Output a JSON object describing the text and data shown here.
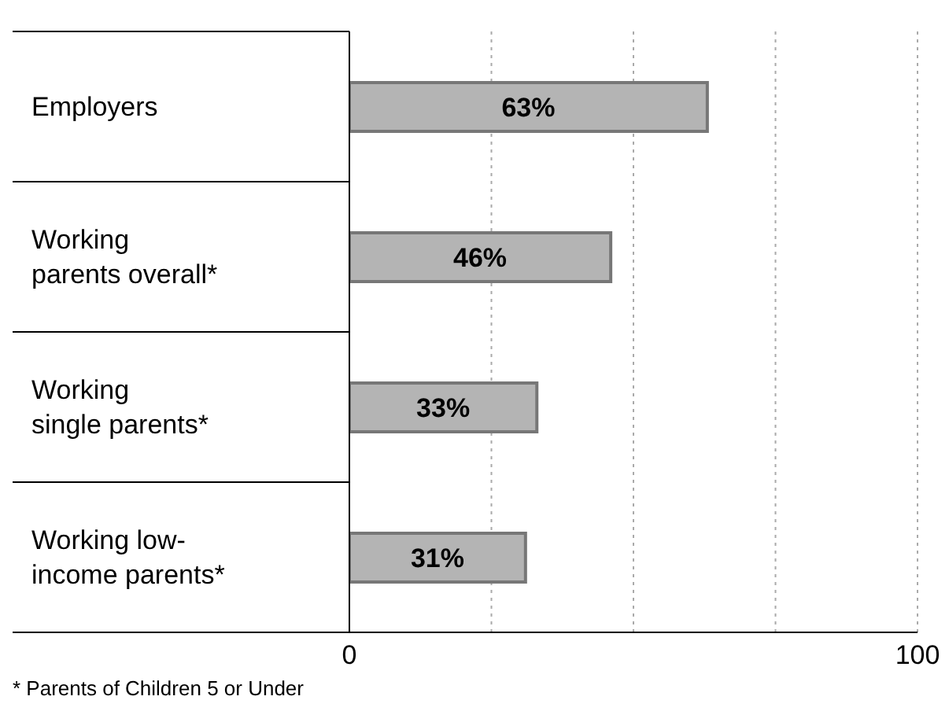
{
  "chart_data": {
    "type": "bar",
    "orientation": "horizontal",
    "categories": [
      "Employers",
      "Working\nparents overall*",
      "Working\nsingle parents*",
      "Working low-\nincome parents*"
    ],
    "values": [
      63,
      46,
      33,
      31
    ],
    "color": "#b4b4b4",
    "value_labels": [
      "63%",
      "46%",
      "33%",
      "31%"
    ],
    "xlim": [
      0,
      100
    ],
    "xticks": [
      0,
      {
        "value": 25,
        "label": null
      },
      {
        "value": 50,
        "label": null
      },
      {
        "value": 75,
        "label": null
      },
      100
    ],
    "grid": "x",
    "annotations": [
      "* Parents of Children 5 or Under"
    ]
  }
}
